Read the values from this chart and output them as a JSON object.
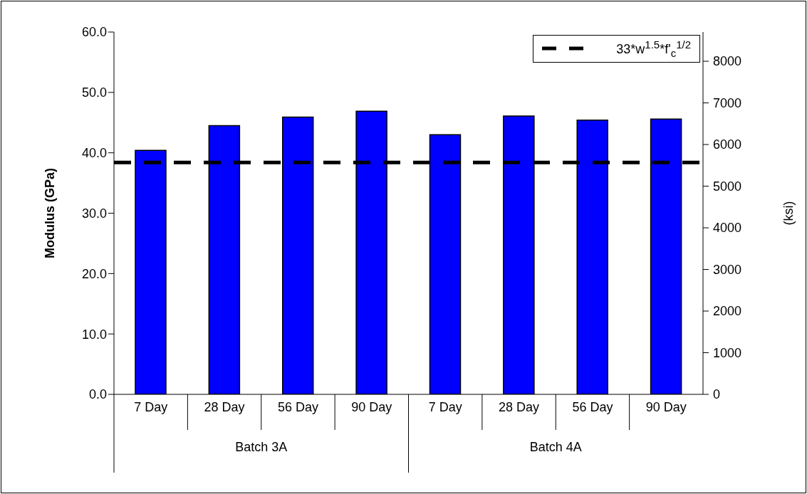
{
  "chart_data": {
    "type": "bar",
    "ylabel": "Modulus (GPa)",
    "y2label": "(ksi)",
    "categories": [
      "7 Day",
      "28 Day",
      "56 Day",
      "90 Day",
      "7 Day",
      "28 Day",
      "56 Day",
      "90 Day"
    ],
    "values": [
      40.4,
      44.5,
      45.9,
      46.9,
      43.0,
      46.1,
      45.4,
      45.6
    ],
    "color": "#0000ff",
    "ylim": [
      0,
      60
    ],
    "yticks": [
      {
        "value": 0,
        "label": "0.0"
      },
      {
        "value": 10,
        "label": "10.0"
      },
      {
        "value": 20,
        "label": "20.0"
      },
      {
        "value": 30,
        "label": "30.0"
      },
      {
        "value": 40,
        "label": "40.0"
      },
      {
        "value": 50,
        "label": "50.0"
      },
      {
        "value": 60,
        "label": "60.0"
      }
    ],
    "y2lim": [
      0,
      8702
    ],
    "y2ticks": [
      0,
      1000,
      2000,
      3000,
      4000,
      5000,
      6000,
      7000,
      8000
    ],
    "ref_lines": [
      {
        "axis": "y",
        "value": 38.4,
        "label": "33*w$^{1.5}$*f'$_{c}$$^{1/2}$",
        "color": "#000000",
        "line_style": "dashed"
      }
    ],
    "annotations": [
      "Batch 3A",
      "Batch 4A"
    ],
    "grid": false,
    "legend": "top right"
  }
}
